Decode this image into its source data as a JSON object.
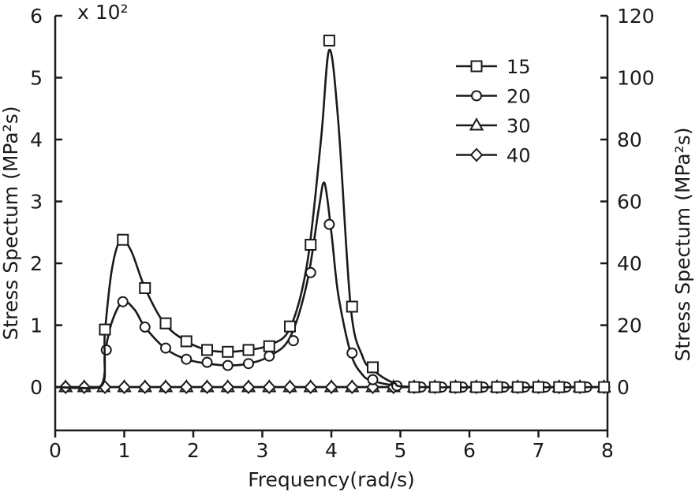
{
  "chart_data": {
    "type": "line",
    "title": "",
    "xlabel": "Frequency(rad/s)",
    "ylabel_left": "Stress Spectum (MPa²s)",
    "ylabel_right": "Stress Spectum (MPa²s)",
    "y_left_multiplier": "x 10²",
    "xlim": [
      0,
      8
    ],
    "ylim_left": [
      -0.7,
      6
    ],
    "ylim_right": [
      -14,
      120
    ],
    "x_ticks": [
      0,
      1,
      2,
      3,
      4,
      5,
      6,
      7,
      8
    ],
    "y_left_ticks": [
      0,
      1,
      2,
      3,
      4,
      5,
      6
    ],
    "y_right_ticks": [
      0,
      20,
      40,
      60,
      80,
      100,
      120
    ],
    "legend_position": "top-right",
    "legend": [
      "15",
      "20",
      "30",
      "40"
    ],
    "series": [
      {
        "name": "15",
        "marker": "square",
        "axis": "left",
        "curve": [
          [
            0,
            0
          ],
          [
            0.65,
            0
          ],
          [
            0.72,
            0.9
          ],
          [
            0.82,
            1.9
          ],
          [
            0.95,
            2.38
          ],
          [
            1.1,
            2.2
          ],
          [
            1.3,
            1.6
          ],
          [
            1.58,
            1.03
          ],
          [
            1.9,
            0.74
          ],
          [
            2.2,
            0.6
          ],
          [
            2.5,
            0.57
          ],
          [
            2.8,
            0.6
          ],
          [
            3.1,
            0.68
          ],
          [
            3.4,
            0.95
          ],
          [
            3.65,
            2.0
          ],
          [
            3.85,
            4.0
          ],
          [
            3.97,
            5.45
          ],
          [
            4.1,
            4.3
          ],
          [
            4.28,
            1.3
          ],
          [
            4.45,
            0.5
          ],
          [
            4.6,
            0.28
          ],
          [
            4.9,
            0.07
          ],
          [
            5.3,
            0
          ],
          [
            8,
            0
          ]
        ],
        "markers": [
          [
            0.72,
            0.93
          ],
          [
            0.98,
            2.38
          ],
          [
            1.3,
            1.6
          ],
          [
            1.6,
            1.03
          ],
          [
            1.9,
            0.74
          ],
          [
            2.2,
            0.6
          ],
          [
            2.5,
            0.57
          ],
          [
            2.8,
            0.6
          ],
          [
            3.1,
            0.66
          ],
          [
            3.4,
            0.98
          ],
          [
            3.7,
            2.3
          ],
          [
            3.97,
            5.6
          ],
          [
            4.3,
            1.3
          ],
          [
            4.6,
            0.32
          ],
          [
            5.2,
            0
          ],
          [
            5.5,
            0
          ],
          [
            5.8,
            0
          ],
          [
            6.1,
            0
          ],
          [
            6.4,
            0
          ],
          [
            6.7,
            0
          ],
          [
            7.0,
            0
          ],
          [
            7.3,
            0
          ],
          [
            7.6,
            0
          ],
          [
            7.95,
            0
          ]
        ]
      },
      {
        "name": "20",
        "marker": "circle",
        "axis": "left",
        "curve": [
          [
            0,
            0
          ],
          [
            0.65,
            0
          ],
          [
            0.72,
            0.55
          ],
          [
            0.82,
            1.05
          ],
          [
            0.98,
            1.38
          ],
          [
            1.15,
            1.25
          ],
          [
            1.3,
            0.97
          ],
          [
            1.6,
            0.62
          ],
          [
            1.9,
            0.45
          ],
          [
            2.2,
            0.38
          ],
          [
            2.5,
            0.35
          ],
          [
            2.8,
            0.38
          ],
          [
            3.1,
            0.5
          ],
          [
            3.4,
            0.8
          ],
          [
            3.65,
            1.7
          ],
          [
            3.82,
            2.9
          ],
          [
            3.9,
            3.3
          ],
          [
            4.0,
            2.5
          ],
          [
            4.1,
            1.5
          ],
          [
            4.28,
            0.55
          ],
          [
            4.45,
            0.2
          ],
          [
            4.6,
            0.1
          ],
          [
            4.9,
            0.03
          ],
          [
            5.3,
            0
          ],
          [
            8,
            0
          ]
        ],
        "markers": [
          [
            0.74,
            0.6
          ],
          [
            0.98,
            1.38
          ],
          [
            1.3,
            0.97
          ],
          [
            1.6,
            0.63
          ],
          [
            1.9,
            0.45
          ],
          [
            2.2,
            0.4
          ],
          [
            2.5,
            0.35
          ],
          [
            2.8,
            0.38
          ],
          [
            3.1,
            0.5
          ],
          [
            3.45,
            0.75
          ],
          [
            3.7,
            1.85
          ],
          [
            3.97,
            2.63
          ],
          [
            4.3,
            0.55
          ],
          [
            4.6,
            0.12
          ],
          [
            4.95,
            0.02
          ],
          [
            5.3,
            0
          ],
          [
            5.6,
            0
          ],
          [
            5.9,
            0
          ],
          [
            6.2,
            0
          ],
          [
            6.5,
            0
          ],
          [
            6.8,
            0
          ],
          [
            7.1,
            0
          ],
          [
            7.4,
            0
          ],
          [
            7.7,
            0
          ]
        ]
      },
      {
        "name": "30",
        "marker": "triangle",
        "axis": "right",
        "curve": [
          [
            0,
            0
          ],
          [
            8,
            0
          ]
        ],
        "markers": [
          [
            0.15,
            0
          ],
          [
            0.42,
            0
          ],
          [
            0.7,
            0
          ],
          [
            1.0,
            0
          ],
          [
            1.3,
            0
          ],
          [
            1.6,
            0
          ],
          [
            1.9,
            0
          ],
          [
            2.2,
            0
          ],
          [
            2.5,
            0
          ],
          [
            2.8,
            0
          ],
          [
            3.1,
            0
          ],
          [
            3.4,
            0
          ],
          [
            3.7,
            0
          ],
          [
            4.0,
            0
          ],
          [
            4.3,
            0
          ],
          [
            4.6,
            0
          ],
          [
            4.9,
            0
          ],
          [
            5.2,
            0
          ],
          [
            5.5,
            0
          ],
          [
            5.8,
            0
          ],
          [
            6.1,
            0
          ],
          [
            6.4,
            0
          ],
          [
            6.7,
            0
          ],
          [
            7.0,
            0
          ],
          [
            7.3,
            0
          ],
          [
            7.6,
            0
          ],
          [
            7.95,
            0
          ]
        ]
      },
      {
        "name": "40",
        "marker": "diamond",
        "axis": "right",
        "curve": [
          [
            0,
            0
          ],
          [
            8,
            0
          ]
        ],
        "markers": [
          [
            0.15,
            0
          ],
          [
            0.42,
            0
          ],
          [
            0.72,
            0
          ],
          [
            1.0,
            0
          ],
          [
            1.3,
            0
          ],
          [
            1.6,
            0
          ],
          [
            1.9,
            0
          ],
          [
            2.2,
            0
          ],
          [
            2.5,
            0
          ],
          [
            2.8,
            0
          ],
          [
            3.1,
            0
          ],
          [
            3.4,
            0
          ],
          [
            3.7,
            0
          ],
          [
            4.0,
            0
          ],
          [
            4.3,
            0
          ],
          [
            4.6,
            0
          ],
          [
            4.9,
            0
          ],
          [
            5.2,
            0
          ],
          [
            5.5,
            0
          ],
          [
            5.8,
            0
          ],
          [
            6.1,
            0
          ],
          [
            6.4,
            0
          ],
          [
            6.7,
            0
          ],
          [
            7.0,
            0
          ],
          [
            7.3,
            0
          ],
          [
            7.6,
            0
          ],
          [
            7.95,
            0
          ]
        ]
      }
    ]
  }
}
